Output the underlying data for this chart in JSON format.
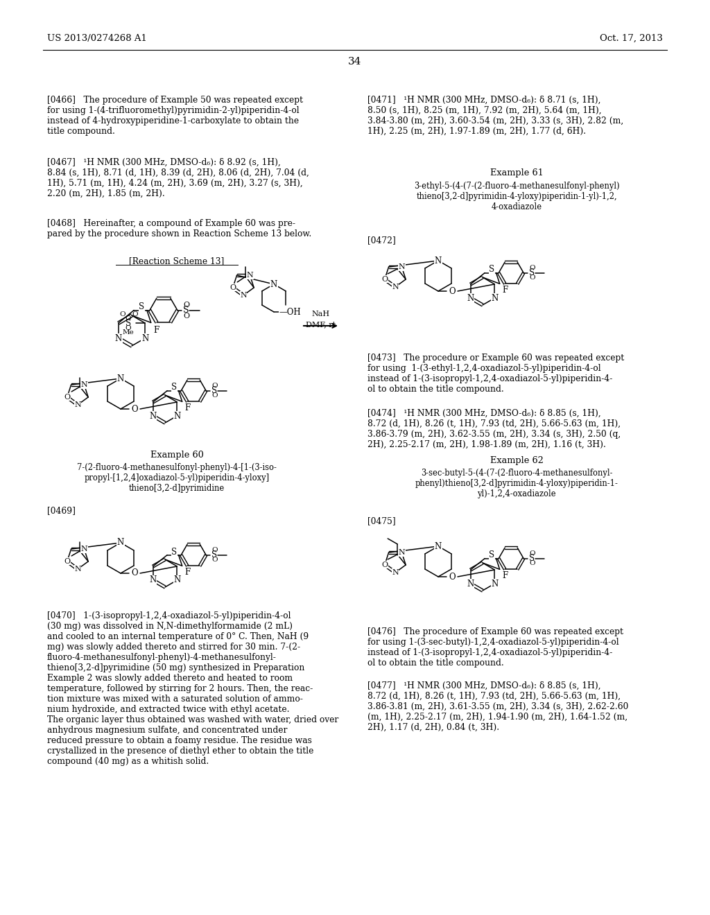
{
  "page_header_left": "US 2013/0274268 A1",
  "page_header_right": "Oct. 17, 2013",
  "page_number": "34",
  "background_color": "#ffffff",
  "text_color": "#000000",
  "left_col": {
    "p0466": "[0466]   The procedure of Example 50 was repeated except\nfor using 1-(4-trifluoromethyl)pyrimidin-2-yl)piperidin-4-ol\ninstead of 4-hydroxypiperidine-1-carboxylate to obtain the\ntitle compound.",
    "p0467": "[0467]   ¹H NMR (300 MHz, DMSO-d₆): δ 8.92 (s, 1H),\n8.84 (s, 1H), 8.71 (d, 1H), 8.39 (d, 2H), 8.06 (d, 2H), 7.04 (d,\n1H), 5.71 (m, 1H), 4.24 (m, 2H), 3.69 (m, 2H), 3.27 (s, 3H),\n2.20 (m, 2H), 1.85 (m, 2H).",
    "p0468": "[0468]   Hereinafter, a compound of Example 60 was pre-\npared by the procedure shown in Reaction Scheme 13 below.",
    "scheme_label": "[Reaction Scheme 13]",
    "ex60_label": "Example 60",
    "ex60_name": "7-(2-fluoro-4-methanesulfonyl-phenyl)-4-[1-(3-iso-\npropyl-[1,2,4]oxadiazol-5-yl)piperidin-4-yloxy]\nthieno[3,2-d]pyrimidine",
    "p0469": "[0469]",
    "p0470": "[0470]   1-(3-isopropyl-1,2,4-oxadiazol-5-yl)piperidin-4-ol\n(30 mg) was dissolved in N,N-dimethylformamide (2 mL)\nand cooled to an internal temperature of 0° C. Then, NaH (9\nmg) was slowly added thereto and stirred for 30 min. 7-(2-\nfluoro-4-methanesulfonyl-phenyl)-4-methanesulfonyl-\nthieno[3,2-d]pyrimidine (50 mg) synthesized in Preparation\nExample 2 was slowly added thereto and heated to room\ntemperature, followed by stirring for 2 hours. Then, the reac-\ntion mixture was mixed with a saturated solution of ammo-\nnium hydroxide, and extracted twice with ethyl acetate.\nThe organic layer thus obtained was washed with water, dried over\nanhydrous magnesium sulfate, and concentrated under\nreduced pressure to obtain a foamy residue. The residue was\ncrystallized in the presence of diethyl ether to obtain the title\ncompound (40 mg) as a whitish solid."
  },
  "right_col": {
    "p0471": "[0471]   ¹H NMR (300 MHz, DMSO-d₆): δ 8.71 (s, 1H),\n8.50 (s, 1H), 8.25 (m, 1H), 7.92 (m, 2H), 5.64 (m, 1H),\n3.84-3.80 (m, 2H), 3.60-3.54 (m, 2H), 3.33 (s, 3H), 2.82 (m,\n1H), 2.25 (m, 2H), 1.97-1.89 (m, 2H), 1.77 (d, 6H).",
    "ex61_label": "Example 61",
    "ex61_name": "3-ethyl-5-(4-(7-(2-fluoro-4-methanesulfonyl-phenyl)\nthieno[3,2-d]pyrimidin-4-yloxy)piperidin-1-yl)-1,2,\n4-oxadiazole",
    "p0472": "[0472]",
    "p0473": "[0473]   The procedure or Example 60 was repeated except\nfor using  1-(3-ethyl-1,2,4-oxadiazol-5-yl)piperidin-4-ol\ninstead of 1-(3-isopropyl-1,2,4-oxadiazol-5-yl)piperidin-4-\nol to obtain the title compound.",
    "p0474": "[0474]   ¹H NMR (300 MHz, DMSO-d₆): δ 8.85 (s, 1H),\n8.72 (d, 1H), 8.26 (t, 1H), 7.93 (td, 2H), 5.66-5.63 (m, 1H),\n3.86-3.79 (m, 2H), 3.62-3.55 (m, 2H), 3.34 (s, 3H), 2.50 (q,\n2H), 2.25-2.17 (m, 2H), 1.98-1.89 (m, 2H), 1.16 (t, 3H).",
    "ex62_label": "Example 62",
    "ex62_name": "3-sec-butyl-5-(4-(7-(2-fluoro-4-methanesulfonyl-\nphenyl)thieno[3,2-d]pyrimidin-4-yloxy)piperidin-1-\nyl)-1,2,4-oxadiazole",
    "p0475": "[0475]",
    "p0476": "[0476]   The procedure of Example 60 was repeated except\nfor using 1-(3-sec-butyl)-1,2,4-oxadiazol-5-yl)piperidin-4-ol\ninstead of 1-(3-isopropyl-1,2,4-oxadiazol-5-yl)piperidin-4-\nol to obtain the title compound.",
    "p0477": "[0477]   ¹H NMR (300 MHz, DMSO-d₆): δ 8.85 (s, 1H),\n8.72 (d, 1H), 8.26 (t, 1H), 7.93 (td, 2H), 5.66-5.63 (m, 1H),\n3.86-3.81 (m, 2H), 3.61-3.55 (m, 2H), 3.34 (s, 3H), 2.62-2.60\n(m, 1H), 2.25-2.17 (m, 2H), 1.94-1.90 (m, 2H), 1.64-1.52 (m,\n2H), 1.17 (d, 2H), 0.84 (t, 3H)."
  }
}
